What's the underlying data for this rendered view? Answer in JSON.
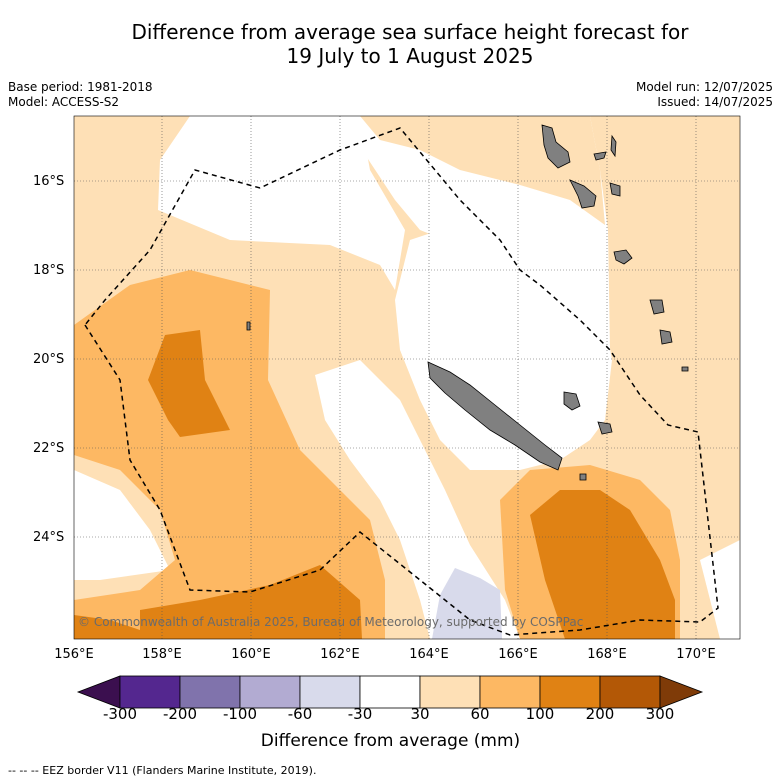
{
  "title_line1": "Difference from average sea surface height forecast for",
  "title_line2": "19 July to 1 August 2025",
  "base_period": "Base period: 1981-2018",
  "model": "Model: ACCESS-S2",
  "model_run": "Model run: 12/07/2025",
  "issued": "Issued: 14/07/2025",
  "copyright": "© Commonwealth of Australia 2025, Bureau of Meteorology, supported by COSPPac",
  "lat_labels": [
    "16°S",
    "18°S",
    "20°S",
    "22°S",
    "24°S"
  ],
  "lon_labels": [
    "156°E",
    "158°E",
    "160°E",
    "162°E",
    "164°E",
    "166°E",
    "168°E",
    "170°E"
  ],
  "colorbar": {
    "title": "Difference from average (mm)",
    "tick_labels": [
      "-300",
      "-200",
      "-100",
      "-60",
      "-30",
      "30",
      "60",
      "100",
      "200",
      "300"
    ],
    "colors": [
      "#3b0f4f",
      "#54278f",
      "#8073ac",
      "#b2abd2",
      "#d8daeb",
      "#ffffff",
      "#fee0b6",
      "#fdb863",
      "#e08214",
      "#b35806",
      "#7f3b08"
    ]
  },
  "footnote": "-- -- -- EEZ border V11 (Flanders Marine Institute, 2019).",
  "colors": {
    "land": "#808080",
    "light_orange": "#fee0b6",
    "mid_orange": "#fdb863",
    "dark_orange": "#e08214",
    "light_purple": "#d8daeb"
  }
}
